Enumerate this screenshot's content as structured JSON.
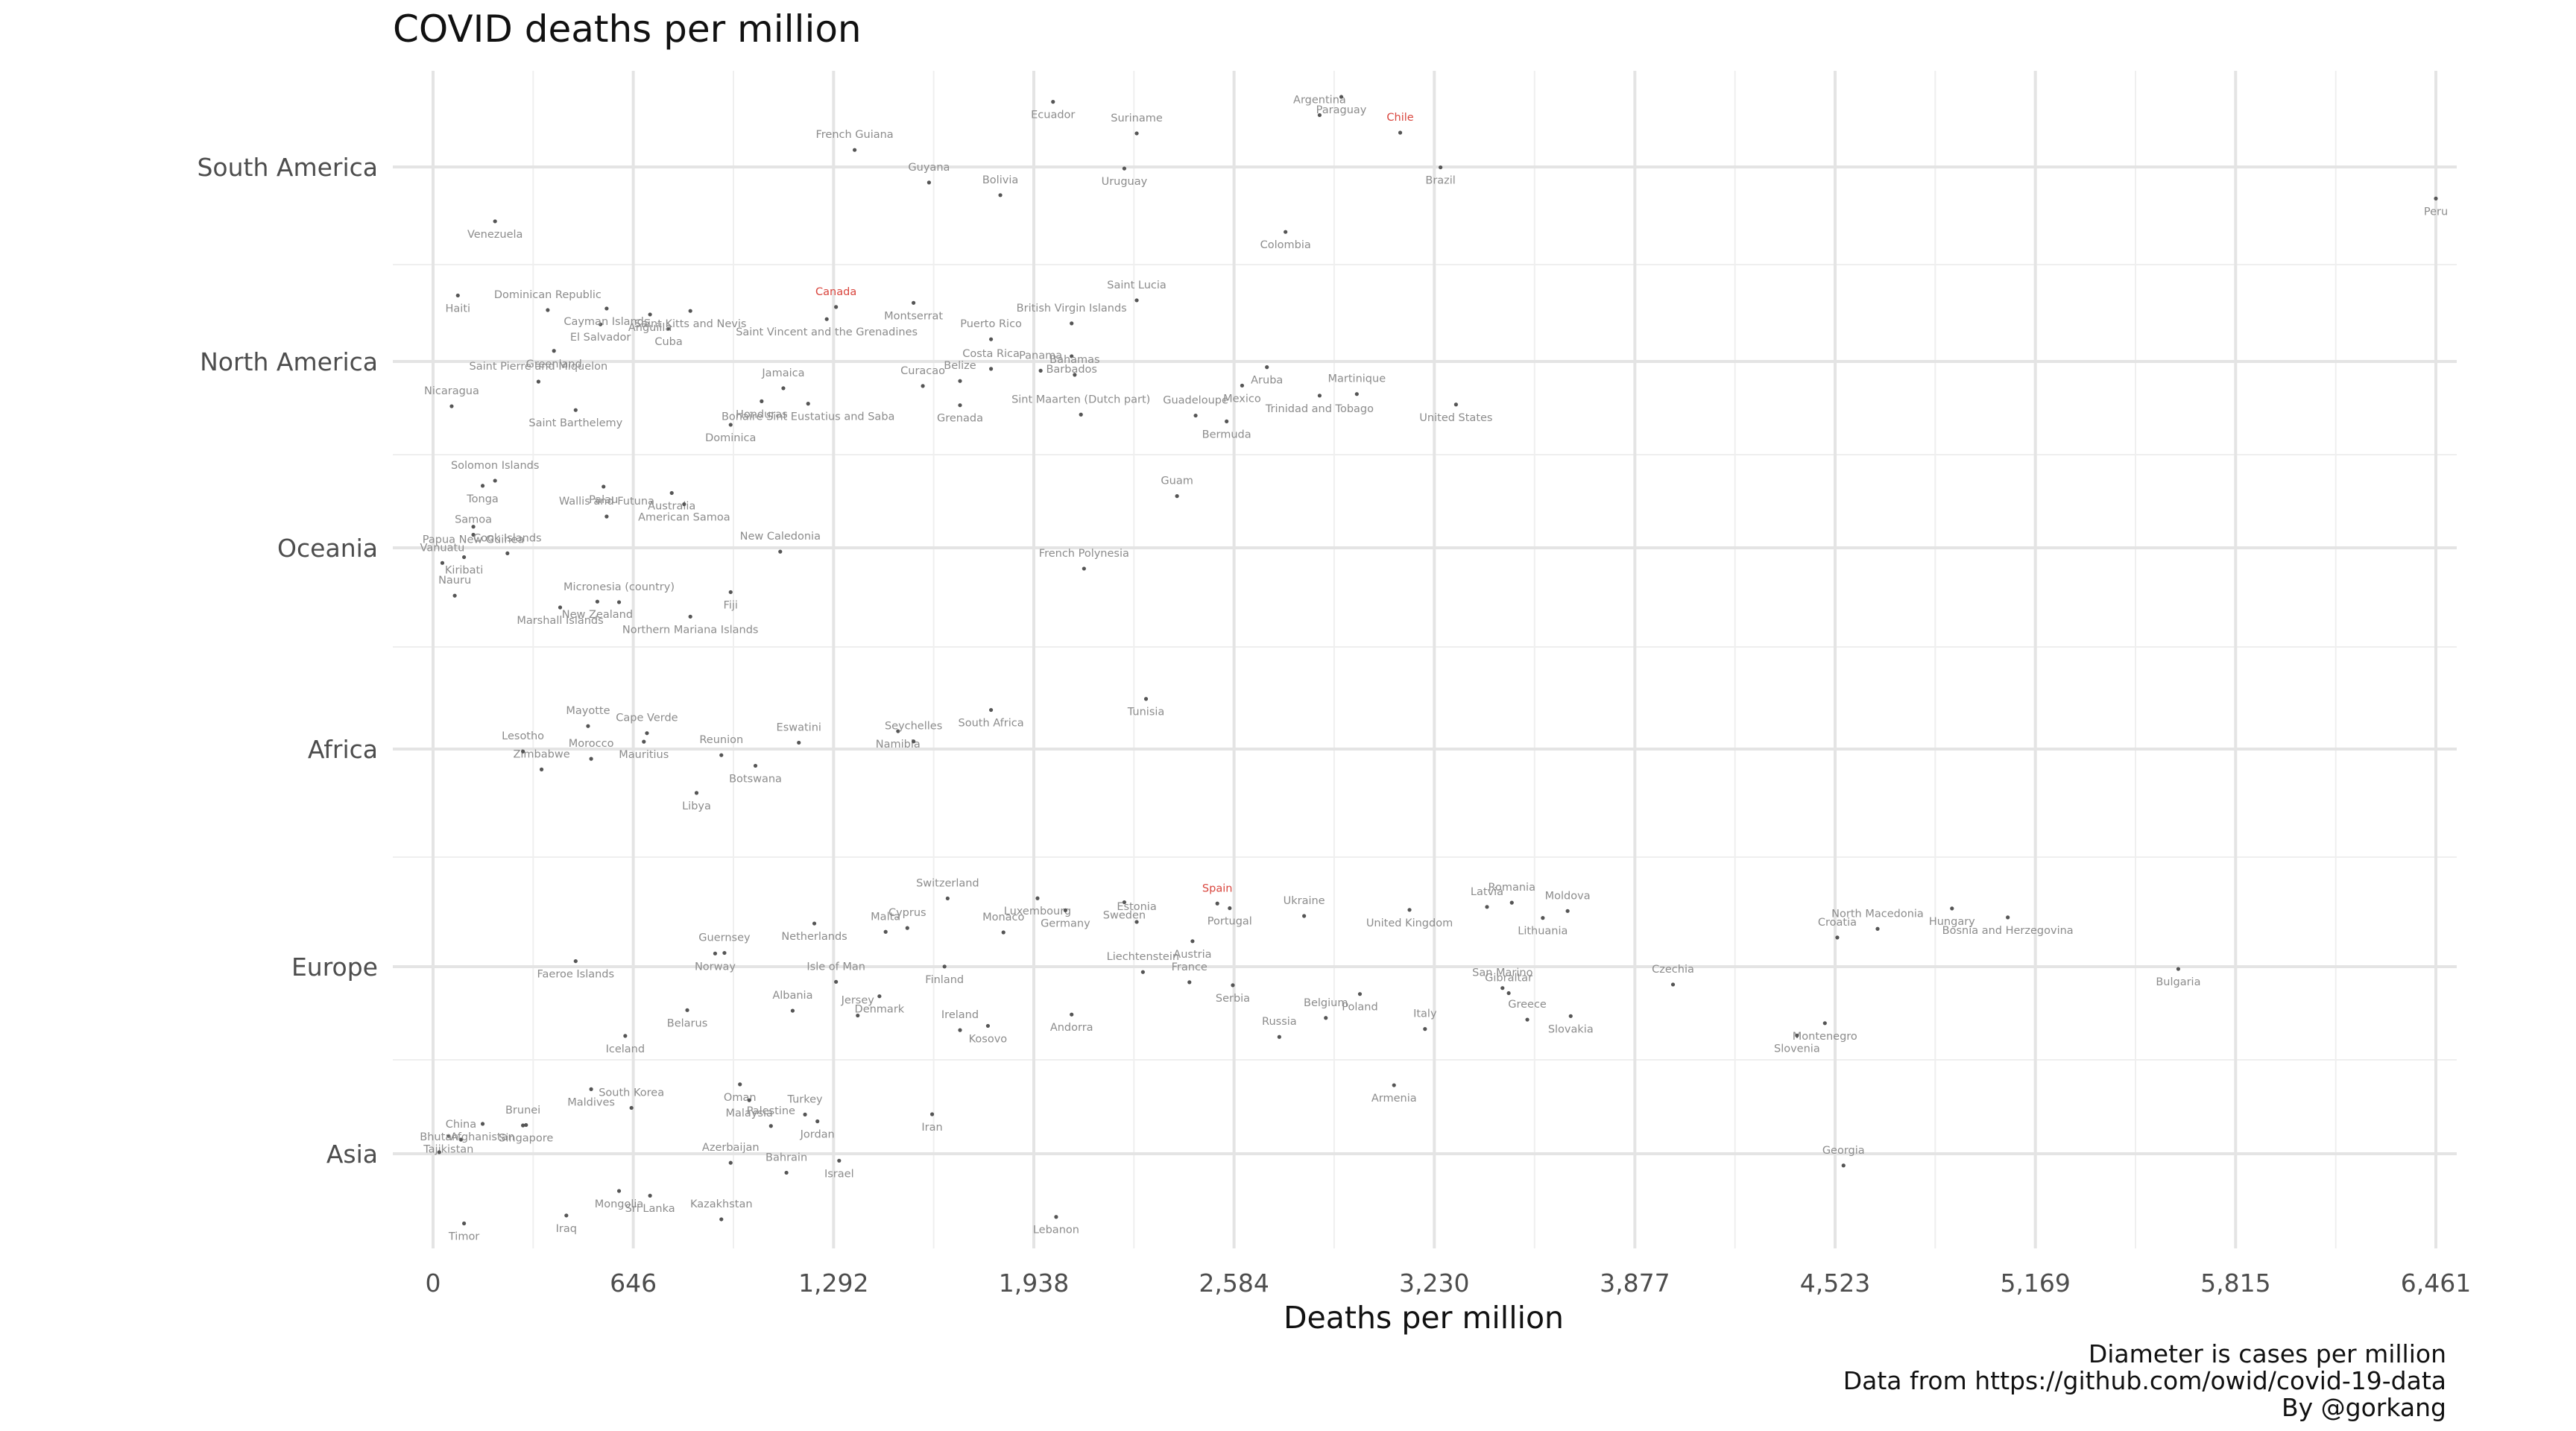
{
  "chart_data": {
    "type": "scatter",
    "title": "COVID deaths per million",
    "xlabel": "Deaths per million",
    "ylabel": "",
    "xlim": [
      0,
      6461
    ],
    "x_ticks": [
      "0",
      "646",
      "1,292",
      "1,938",
      "2,584",
      "3,230",
      "3,877",
      "4,523",
      "5,169",
      "5,815",
      "6,461"
    ],
    "x_tick_values": [
      0,
      646,
      1292,
      1938,
      2584,
      3230,
      3877,
      4523,
      5169,
      5815,
      6461
    ],
    "categories": [
      "South America",
      "North America",
      "Oceania",
      "Africa",
      "Europe",
      "Asia"
    ],
    "caption": [
      "Diameter is cases per million",
      "Data from https://github.com/owid/covid-19-data",
      "By @gorkang"
    ],
    "highlight_color": "#d9453d",
    "point_color": "#555555",
    "points": [
      {
        "c": "South America",
        "name": "Venezuela",
        "x": 200
      },
      {
        "c": "South America",
        "name": "French Guiana",
        "x": 1360
      },
      {
        "c": "South America",
        "name": "Guyana",
        "x": 1600
      },
      {
        "c": "South America",
        "name": "Bolivia",
        "x": 1830
      },
      {
        "c": "South America",
        "name": "Ecuador",
        "x": 2000
      },
      {
        "c": "South America",
        "name": "Suriname",
        "x": 2270
      },
      {
        "c": "South America",
        "name": "Uruguay",
        "x": 2230
      },
      {
        "c": "South America",
        "name": "Colombia",
        "x": 2750
      },
      {
        "c": "South America",
        "name": "Argentina",
        "x": 2860
      },
      {
        "c": "South America",
        "name": "Paraguay",
        "x": 2930
      },
      {
        "c": "South America",
        "name": "Chile",
        "x": 3120,
        "highlight": true
      },
      {
        "c": "South America",
        "name": "Brazil",
        "x": 3250
      },
      {
        "c": "South America",
        "name": "Peru",
        "x": 6461
      },
      {
        "c": "North America",
        "name": "Nicaragua",
        "x": 60
      },
      {
        "c": "North America",
        "name": "Haiti",
        "x": 80
      },
      {
        "c": "North America",
        "name": "Saint Pierre and Miquelon",
        "x": 340
      },
      {
        "c": "North America",
        "name": "Dominican Republic",
        "x": 370
      },
      {
        "c": "North America",
        "name": "Greenland",
        "x": 390
      },
      {
        "c": "North America",
        "name": "Saint Barthelemy",
        "x": 460
      },
      {
        "c": "North America",
        "name": "El Salvador",
        "x": 540
      },
      {
        "c": "North America",
        "name": "Cayman Islands",
        "x": 560
      },
      {
        "c": "North America",
        "name": "Cuba",
        "x": 760
      },
      {
        "c": "North America",
        "name": "Anguilla",
        "x": 700
      },
      {
        "c": "North America",
        "name": "Saint Kitts and Nevis",
        "x": 830
      },
      {
        "c": "North America",
        "name": "Dominica",
        "x": 960
      },
      {
        "c": "North America",
        "name": "Honduras",
        "x": 1060
      },
      {
        "c": "North America",
        "name": "Jamaica",
        "x": 1130
      },
      {
        "c": "North America",
        "name": "Canada",
        "x": 1300,
        "highlight": true
      },
      {
        "c": "North America",
        "name": "Bonaire Sint Eustatius and Saba",
        "x": 1210
      },
      {
        "c": "North America",
        "name": "Saint Vincent and the Grenadines",
        "x": 1270
      },
      {
        "c": "North America",
        "name": "Montserrat",
        "x": 1550
      },
      {
        "c": "North America",
        "name": "Curacao",
        "x": 1580
      },
      {
        "c": "North America",
        "name": "Grenada",
        "x": 1700
      },
      {
        "c": "North America",
        "name": "Belize",
        "x": 1700
      },
      {
        "c": "North America",
        "name": "Puerto Rico",
        "x": 1800
      },
      {
        "c": "North America",
        "name": "Costa Rica",
        "x": 1800
      },
      {
        "c": "North America",
        "name": "Panama",
        "x": 1960
      },
      {
        "c": "North America",
        "name": "British Virgin Islands",
        "x": 2060
      },
      {
        "c": "North America",
        "name": "Barbados",
        "x": 2060
      },
      {
        "c": "North America",
        "name": "Bahamas",
        "x": 2070
      },
      {
        "c": "North America",
        "name": "Sint Maarten (Dutch part)",
        "x": 2090
      },
      {
        "c": "North America",
        "name": "Saint Lucia",
        "x": 2270
      },
      {
        "c": "North America",
        "name": "Guadeloupe",
        "x": 2460
      },
      {
        "c": "North America",
        "name": "Bermuda",
        "x": 2560
      },
      {
        "c": "North America",
        "name": "Mexico",
        "x": 2610
      },
      {
        "c": "North America",
        "name": "Aruba",
        "x": 2690
      },
      {
        "c": "North America",
        "name": "Trinidad and Tobago",
        "x": 2860
      },
      {
        "c": "North America",
        "name": "Martinique",
        "x": 2980
      },
      {
        "c": "North America",
        "name": "United States",
        "x": 3300
      },
      {
        "c": "Oceania",
        "name": "Vanuatu",
        "x": 30
      },
      {
        "c": "Oceania",
        "name": "Nauru",
        "x": 70
      },
      {
        "c": "Oceania",
        "name": "Papua New Guinea",
        "x": 130
      },
      {
        "c": "Oceania",
        "name": "Kiribati",
        "x": 100
      },
      {
        "c": "Oceania",
        "name": "Samoa",
        "x": 130
      },
      {
        "c": "Oceania",
        "name": "Solomon Islands",
        "x": 200
      },
      {
        "c": "Oceania",
        "name": "Tonga",
        "x": 160
      },
      {
        "c": "Oceania",
        "name": "Cook Islands",
        "x": 240
      },
      {
        "c": "Oceania",
        "name": "Marshall Islands",
        "x": 410
      },
      {
        "c": "Oceania",
        "name": "Wallis and Futuna",
        "x": 560
      },
      {
        "c": "Oceania",
        "name": "Micronesia (country)",
        "x": 600
      },
      {
        "c": "Oceania",
        "name": "Palau",
        "x": 550
      },
      {
        "c": "Oceania",
        "name": "New Zealand",
        "x": 530
      },
      {
        "c": "Oceania",
        "name": "Australia",
        "x": 770
      },
      {
        "c": "Oceania",
        "name": "Northern Mariana Islands",
        "x": 830
      },
      {
        "c": "Oceania",
        "name": "American Samoa",
        "x": 810
      },
      {
        "c": "Oceania",
        "name": "Fiji",
        "x": 960
      },
      {
        "c": "Oceania",
        "name": "New Caledonia",
        "x": 1120
      },
      {
        "c": "Oceania",
        "name": "French Polynesia",
        "x": 2100
      },
      {
        "c": "Oceania",
        "name": "Guam",
        "x": 2400
      },
      {
        "c": "Africa",
        "name": "Morocco",
        "x": 510
      },
      {
        "c": "Africa",
        "name": "Mayotte",
        "x": 500
      },
      {
        "c": "Africa",
        "name": "Zimbabwe",
        "x": 350
      },
      {
        "c": "Africa",
        "name": "Lesotho",
        "x": 290
      },
      {
        "c": "Africa",
        "name": "Cape Verde",
        "x": 690
      },
      {
        "c": "Africa",
        "name": "Mauritius",
        "x": 680
      },
      {
        "c": "Africa",
        "name": "Libya",
        "x": 850
      },
      {
        "c": "Africa",
        "name": "Reunion",
        "x": 930
      },
      {
        "c": "Africa",
        "name": "Botswana",
        "x": 1040
      },
      {
        "c": "Africa",
        "name": "Eswatini",
        "x": 1180
      },
      {
        "c": "Africa",
        "name": "Namibia",
        "x": 1500
      },
      {
        "c": "Africa",
        "name": "Seychelles",
        "x": 1550
      },
      {
        "c": "Africa",
        "name": "South Africa",
        "x": 1800
      },
      {
        "c": "Africa",
        "name": "Tunisia",
        "x": 2300
      },
      {
        "c": "Europe",
        "name": "Faeroe Islands",
        "x": 460
      },
      {
        "c": "Europe",
        "name": "Iceland",
        "x": 620
      },
      {
        "c": "Europe",
        "name": "Belarus",
        "x": 820
      },
      {
        "c": "Europe",
        "name": "Norway",
        "x": 910
      },
      {
        "c": "Europe",
        "name": "Guernsey",
        "x": 940
      },
      {
        "c": "Europe",
        "name": "Netherlands",
        "x": 1230
      },
      {
        "c": "Europe",
        "name": "Albania",
        "x": 1160
      },
      {
        "c": "Europe",
        "name": "Isle of Man",
        "x": 1300
      },
      {
        "c": "Europe",
        "name": "Jersey",
        "x": 1370
      },
      {
        "c": "Europe",
        "name": "Denmark",
        "x": 1440
      },
      {
        "c": "Europe",
        "name": "Malta",
        "x": 1460
      },
      {
        "c": "Europe",
        "name": "Cyprus",
        "x": 1530
      },
      {
        "c": "Europe",
        "name": "Finland",
        "x": 1650
      },
      {
        "c": "Europe",
        "name": "Ireland",
        "x": 1700
      },
      {
        "c": "Europe",
        "name": "Switzerland",
        "x": 1660
      },
      {
        "c": "Europe",
        "name": "Kosovo",
        "x": 1790
      },
      {
        "c": "Europe",
        "name": "Monaco",
        "x": 1840
      },
      {
        "c": "Europe",
        "name": "Luxembourg",
        "x": 1950
      },
      {
        "c": "Europe",
        "name": "Andorra",
        "x": 2060
      },
      {
        "c": "Europe",
        "name": "Germany",
        "x": 2040
      },
      {
        "c": "Europe",
        "name": "Sweden",
        "x": 2230
      },
      {
        "c": "Europe",
        "name": "Liechtenstein",
        "x": 2290
      },
      {
        "c": "Europe",
        "name": "Estonia",
        "x": 2270
      },
      {
        "c": "Europe",
        "name": "Austria",
        "x": 2450
      },
      {
        "c": "Europe",
        "name": "France",
        "x": 2440
      },
      {
        "c": "Europe",
        "name": "Spain",
        "x": 2530,
        "highlight": true
      },
      {
        "c": "Europe",
        "name": "Portugal",
        "x": 2570
      },
      {
        "c": "Europe",
        "name": "Serbia",
        "x": 2580
      },
      {
        "c": "Europe",
        "name": "Russia",
        "x": 2730
      },
      {
        "c": "Europe",
        "name": "Belgium",
        "x": 2880
      },
      {
        "c": "Europe",
        "name": "Ukraine",
        "x": 2810
      },
      {
        "c": "Europe",
        "name": "Poland",
        "x": 2990
      },
      {
        "c": "Europe",
        "name": "United Kingdom",
        "x": 3150
      },
      {
        "c": "Europe",
        "name": "Italy",
        "x": 3200
      },
      {
        "c": "Europe",
        "name": "Romania",
        "x": 3480
      },
      {
        "c": "Europe",
        "name": "Latvia",
        "x": 3400
      },
      {
        "c": "Europe",
        "name": "Greece",
        "x": 3530
      },
      {
        "c": "Europe",
        "name": "Gibraltar",
        "x": 3470
      },
      {
        "c": "Europe",
        "name": "San Marino",
        "x": 3450
      },
      {
        "c": "Europe",
        "name": "Lithuania",
        "x": 3580
      },
      {
        "c": "Europe",
        "name": "Slovakia",
        "x": 3670
      },
      {
        "c": "Europe",
        "name": "Moldova",
        "x": 3660
      },
      {
        "c": "Europe",
        "name": "Czechia",
        "x": 4000
      },
      {
        "c": "Europe",
        "name": "Montenegro",
        "x": 4490
      },
      {
        "c": "Europe",
        "name": "Slovenia",
        "x": 4400
      },
      {
        "c": "Europe",
        "name": "Croatia",
        "x": 4530
      },
      {
        "c": "Europe",
        "name": "North Macedonia",
        "x": 4660
      },
      {
        "c": "Europe",
        "name": "Bosnia and Herzegovina",
        "x": 5080
      },
      {
        "c": "Europe",
        "name": "Hungary",
        "x": 4900
      },
      {
        "c": "Europe",
        "name": "Bulgaria",
        "x": 5630
      },
      {
        "c": "Asia",
        "name": "Tajikistan",
        "x": 50
      },
      {
        "c": "Asia",
        "name": "China",
        "x": 90
      },
      {
        "c": "Asia",
        "name": "Timor",
        "x": 100
      },
      {
        "c": "Asia",
        "name": "Bhutan",
        "x": 20
      },
      {
        "c": "Asia",
        "name": "Afghanistan",
        "x": 160
      },
      {
        "c": "Asia",
        "name": "Singapore",
        "x": 300
      },
      {
        "c": "Asia",
        "name": "Brunei",
        "x": 290
      },
      {
        "c": "Asia",
        "name": "Iraq",
        "x": 430
      },
      {
        "c": "Asia",
        "name": "Maldives",
        "x": 510
      },
      {
        "c": "Asia",
        "name": "Mongolia",
        "x": 600
      },
      {
        "c": "Asia",
        "name": "South Korea",
        "x": 640
      },
      {
        "c": "Asia",
        "name": "Sri Lanka",
        "x": 700
      },
      {
        "c": "Asia",
        "name": "Kazakhstan",
        "x": 930
      },
      {
        "c": "Asia",
        "name": "Azerbaijan",
        "x": 960
      },
      {
        "c": "Asia",
        "name": "Oman",
        "x": 990
      },
      {
        "c": "Asia",
        "name": "Malaysia",
        "x": 1020
      },
      {
        "c": "Asia",
        "name": "Palestine",
        "x": 1090
      },
      {
        "c": "Asia",
        "name": "Bahrain",
        "x": 1140
      },
      {
        "c": "Asia",
        "name": "Turkey",
        "x": 1200
      },
      {
        "c": "Asia",
        "name": "Jordan",
        "x": 1240
      },
      {
        "c": "Asia",
        "name": "Israel",
        "x": 1310
      },
      {
        "c": "Asia",
        "name": "Iran",
        "x": 1610
      },
      {
        "c": "Asia",
        "name": "Lebanon",
        "x": 2010
      },
      {
        "c": "Asia",
        "name": "Armenia",
        "x": 3100
      },
      {
        "c": "Asia",
        "name": "Georgia",
        "x": 4550
      }
    ]
  }
}
